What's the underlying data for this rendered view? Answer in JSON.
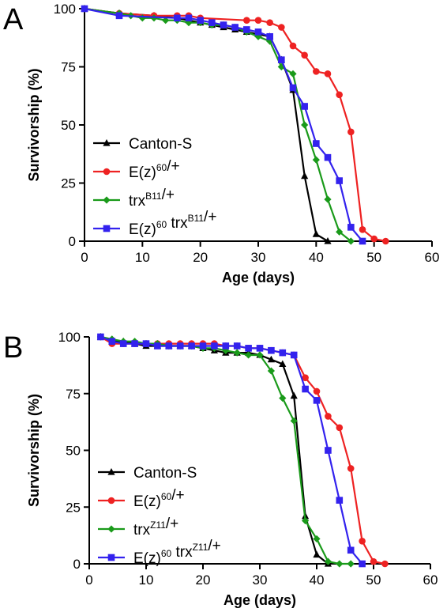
{
  "chart_data": [
    {
      "panel": "A",
      "type": "line",
      "xlabel": "Age (days)",
      "ylabel": "Survivorship (%)",
      "xlim": [
        0,
        60
      ],
      "ylim": [
        0,
        100
      ],
      "xticks": [
        0,
        10,
        20,
        30,
        40,
        50,
        60
      ],
      "yticks": [
        0,
        25,
        50,
        75,
        100
      ],
      "grid": false,
      "legend_position": "lower-left",
      "series": [
        {
          "name": "Canton-S",
          "base": "Canton-S",
          "sup": "",
          "tail": "",
          "color": "#000000",
          "marker": "triangle",
          "x": [
            0,
            6,
            12,
            16,
            18,
            20,
            22,
            24,
            26,
            28,
            30,
            32,
            34,
            36,
            38,
            40,
            42
          ],
          "y": [
            100,
            98,
            97,
            96,
            95,
            94,
            93,
            92,
            91,
            90,
            89,
            88,
            78,
            65,
            28,
            3,
            0
          ]
        },
        {
          "name": "E(z)60/+",
          "base": "E(z)",
          "sup": "60",
          "tail": "/+",
          "color": "#ee2222",
          "marker": "circle",
          "x": [
            0,
            6,
            12,
            16,
            18,
            20,
            28,
            30,
            32,
            34,
            36,
            38,
            40,
            42,
            44,
            46,
            48,
            50,
            52
          ],
          "y": [
            100,
            98,
            97,
            97,
            97,
            96,
            95,
            95,
            94,
            92,
            84,
            80,
            73,
            72,
            63,
            47,
            5,
            1,
            0
          ]
        },
        {
          "name": "trxB11/+",
          "base": "trx",
          "sup": "B11",
          "tail": "/+",
          "color": "#1a9a1a",
          "marker": "diamond",
          "x": [
            0,
            6,
            8,
            10,
            12,
            14,
            16,
            18,
            20,
            22,
            24,
            26,
            28,
            30,
            32,
            34,
            36,
            38,
            40,
            42,
            44,
            46
          ],
          "y": [
            100,
            98,
            97,
            96,
            96,
            95,
            95,
            94,
            94,
            93,
            93,
            92,
            90,
            88,
            86,
            75,
            72,
            50,
            35,
            18,
            4,
            0
          ]
        },
        {
          "name": "E(z)60 trxB11/+",
          "base": "E(z)",
          "sup": "60",
          "tail": " trx",
          "sup2": "B11",
          "tail2": "/+",
          "color": "#3322ee",
          "marker": "square",
          "x": [
            0,
            6,
            16,
            18,
            20,
            22,
            24,
            26,
            28,
            30,
            32,
            34,
            36,
            38,
            40,
            42,
            44,
            46,
            48
          ],
          "y": [
            100,
            97,
            96,
            96,
            95,
            94,
            93,
            92,
            91,
            90,
            88,
            78,
            66,
            58,
            42,
            36,
            26,
            6,
            0
          ]
        }
      ]
    },
    {
      "panel": "B",
      "type": "line",
      "xlabel": "Age (days)",
      "ylabel": "Survivorship (%)",
      "xlim": [
        0,
        60
      ],
      "ylim": [
        0,
        100
      ],
      "xticks": [
        0,
        10,
        20,
        30,
        40,
        50,
        60
      ],
      "yticks": [
        0,
        25,
        50,
        75,
        100
      ],
      "grid": false,
      "legend_position": "lower-left",
      "series": [
        {
          "name": "Canton-S",
          "base": "Canton-S",
          "sup": "",
          "tail": "",
          "color": "#000000",
          "marker": "triangle",
          "x": [
            2,
            4,
            6,
            8,
            10,
            12,
            14,
            16,
            18,
            20,
            22,
            24,
            26,
            28,
            30,
            32,
            34,
            36,
            38,
            40,
            42
          ],
          "y": [
            100,
            98,
            98,
            97,
            96,
            96,
            96,
            96,
            96,
            95,
            94,
            93,
            93,
            93,
            92,
            90,
            88,
            74,
            21,
            4,
            0
          ]
        },
        {
          "name": "E(z)60/+",
          "base": "E(z)",
          "sup": "60",
          "tail": "/+",
          "color": "#ee2222",
          "marker": "circle",
          "x": [
            2,
            4,
            6,
            8,
            10,
            12,
            14,
            16,
            18,
            20,
            22,
            24,
            26,
            28,
            30,
            32,
            34,
            36,
            38,
            40,
            42,
            44,
            46,
            48,
            50,
            52
          ],
          "y": [
            100,
            97,
            97,
            97,
            97,
            97,
            97,
            97,
            97,
            97,
            97,
            96,
            96,
            95,
            95,
            94,
            93,
            92,
            82,
            76,
            65,
            60,
            42,
            10,
            1,
            0
          ]
        },
        {
          "name": "trxZ11/+",
          "base": "trx",
          "sup": "Z11",
          "tail": "/+",
          "color": "#1a9a1a",
          "marker": "diamond",
          "x": [
            2,
            4,
            6,
            8,
            10,
            12,
            14,
            16,
            18,
            20,
            22,
            24,
            26,
            28,
            30,
            32,
            34,
            36,
            38,
            40,
            42,
            44,
            46
          ],
          "y": [
            100,
            99,
            98,
            98,
            97,
            97,
            96,
            96,
            96,
            95,
            95,
            94,
            93,
            92,
            92,
            85,
            73,
            63,
            19,
            11,
            1,
            0,
            0
          ]
        },
        {
          "name": "E(z)60 trxZ11/+",
          "base": "E(z)",
          "sup": "60",
          "tail": " trx",
          "sup2": "Z11",
          "tail2": "/+",
          "color": "#3322ee",
          "marker": "square",
          "x": [
            2,
            4,
            6,
            8,
            10,
            12,
            14,
            16,
            18,
            20,
            22,
            24,
            26,
            28,
            30,
            32,
            34,
            36,
            38,
            40,
            42,
            44,
            46,
            48
          ],
          "y": [
            100,
            98,
            97,
            97,
            97,
            96,
            96,
            96,
            96,
            96,
            96,
            96,
            96,
            95,
            95,
            94,
            93,
            92,
            77,
            72,
            50,
            28,
            6,
            0
          ]
        }
      ]
    }
  ]
}
